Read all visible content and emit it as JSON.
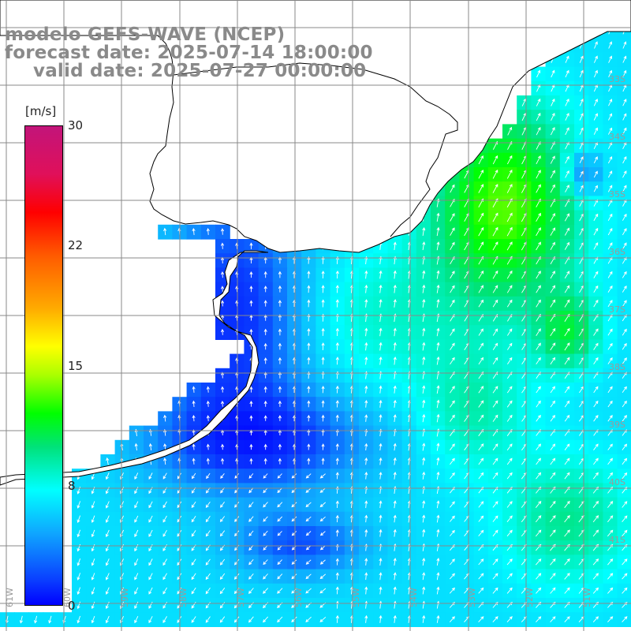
{
  "title": {
    "line1": "modelo GEFS-WAVE (NCEP)",
    "line2": "forecast date: 2025-07-14 18:00:00",
    "line3": "valid date: 2025-07-27 00:00:00"
  },
  "colorbar": {
    "unit": "[m/s]",
    "min": 0,
    "max": 30,
    "ticks": [
      "30",
      "22",
      "15",
      "8",
      "0"
    ],
    "colors": [
      "#0000ff",
      "#0a3cff",
      "#0fa6ff",
      "#00ffff",
      "#00e27a",
      "#00ff00",
      "#aaff00",
      "#ffff00",
      "#ffaa00",
      "#ff5a00",
      "#ff0000",
      "#e0105a",
      "#c2147a"
    ]
  },
  "map": {
    "longitude_labels": [
      "61W",
      "60W",
      "59W",
      "58W",
      "57W",
      "56W",
      "55W",
      "54W",
      "53W",
      "52W",
      "51W"
    ],
    "latitude_labels": [
      "33S",
      "34S",
      "35S",
      "36S",
      "37S",
      "38S",
      "39S",
      "40S",
      "41S"
    ],
    "land_color": "#ffffff",
    "coast_color": "#000000",
    "grid_color": "#888888",
    "arrow_color": "#ffffff"
  }
}
